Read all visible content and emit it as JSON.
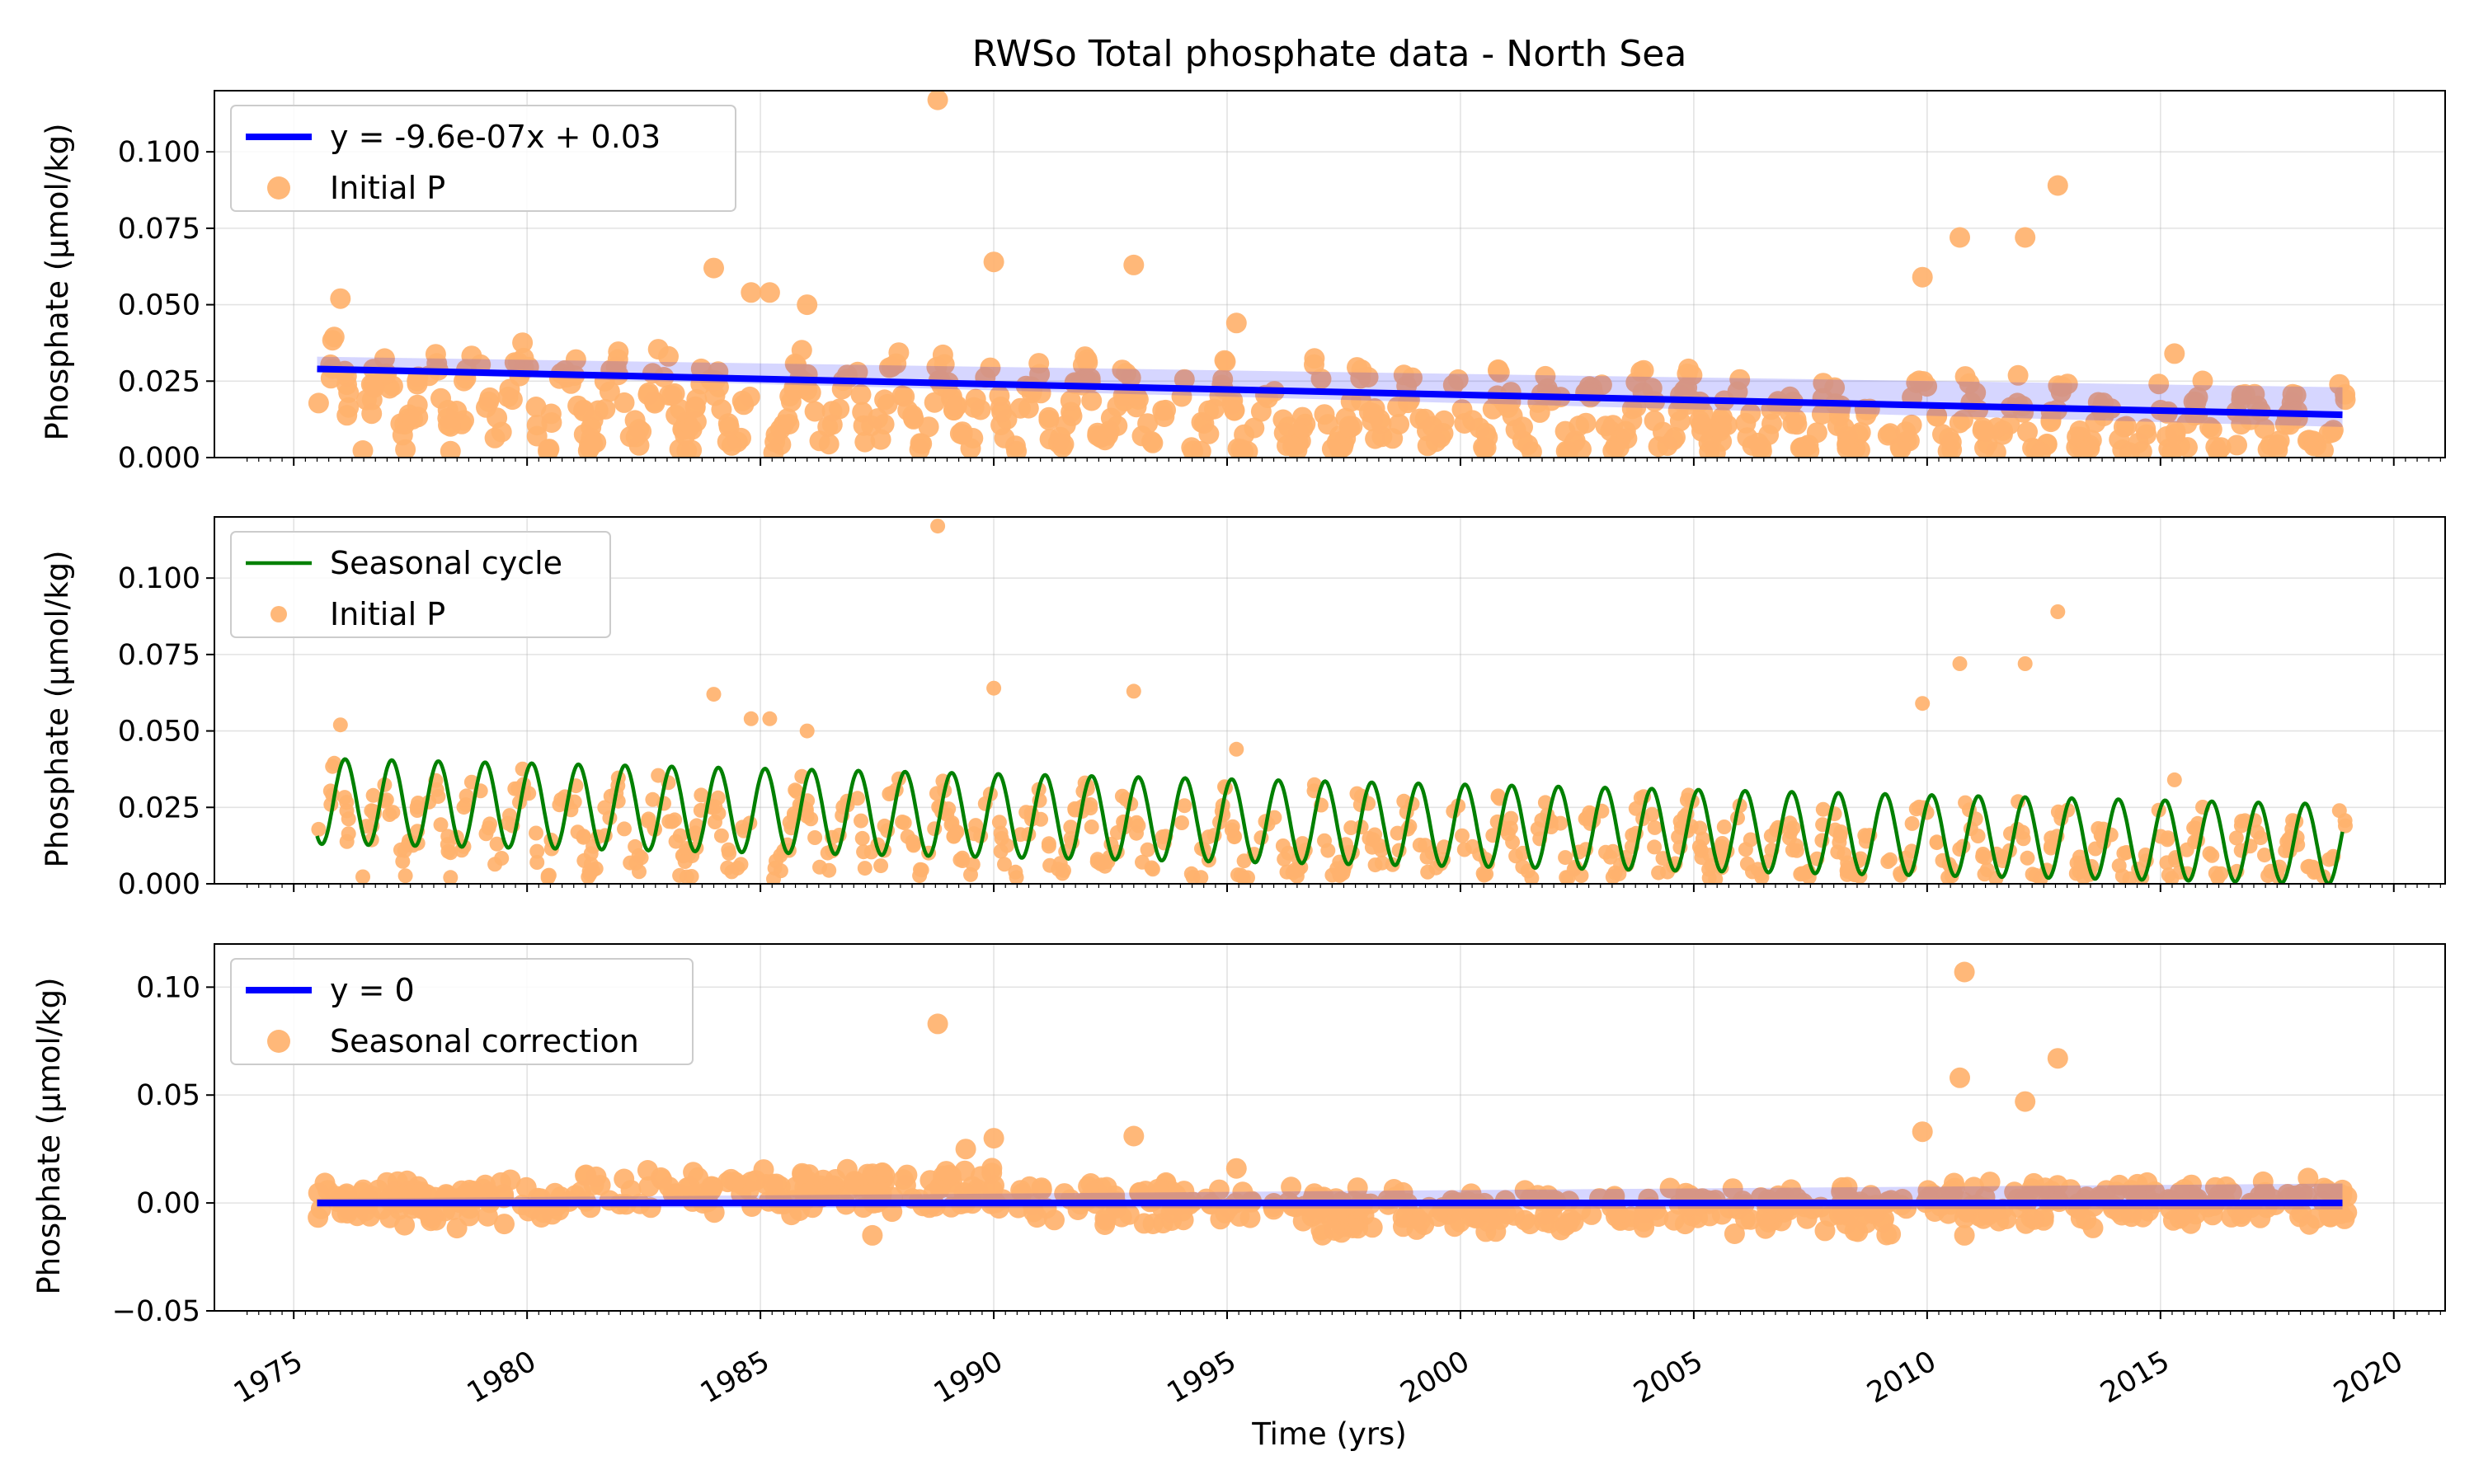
{
  "chart_data": [
    {
      "type": "scatter",
      "title": "RWSo Total phosphate data - North Sea",
      "ylabel": "Phosphate (µmol/kg)",
      "xlim": [
        1973.3,
        2021.1
      ],
      "ylim": [
        0,
        0.12
      ],
      "yticks": [
        0,
        0.025,
        0.05,
        0.075,
        0.1
      ],
      "ytick_labels": [
        "0.000",
        "0.025",
        "0.050",
        "0.075",
        "0.100"
      ],
      "grid": true,
      "legend_position": "top-left",
      "series": [
        {
          "name": "y = -9.6e-07x + 0.03",
          "kind": "line",
          "color": "#0000ff",
          "x": [
            1975.5,
            2018.9
          ],
          "y": [
            0.029,
            0.014
          ]
        },
        {
          "name": "Initial P",
          "kind": "scatter",
          "color": "#ffb26e",
          "seed": 7,
          "x_range": [
            1975.5,
            2019.0
          ],
          "trend": [
            0.032,
            0.015
          ],
          "amplitude": [
            0.013,
            0.009
          ],
          "outliers": [
            {
              "x": 1976.0,
              "y": 0.052
            },
            {
              "x": 1984.0,
              "y": 0.062
            },
            {
              "x": 1984.8,
              "y": 0.054
            },
            {
              "x": 1985.2,
              "y": 0.054
            },
            {
              "x": 1986.0,
              "y": 0.05
            },
            {
              "x": 1988.8,
              "y": 0.117
            },
            {
              "x": 1990.0,
              "y": 0.064
            },
            {
              "x": 1993.0,
              "y": 0.063
            },
            {
              "x": 1995.2,
              "y": 0.044
            },
            {
              "x": 2009.9,
              "y": 0.059
            },
            {
              "x": 2010.7,
              "y": 0.072
            },
            {
              "x": 2012.1,
              "y": 0.072
            },
            {
              "x": 2012.8,
              "y": 0.089
            },
            {
              "x": 2015.3,
              "y": 0.034
            }
          ]
        }
      ]
    },
    {
      "type": "scatter",
      "ylabel": "Phosphate (µmol/kg)",
      "xlim": [
        1973.3,
        2021.1
      ],
      "ylim": [
        0,
        0.12
      ],
      "yticks": [
        0,
        0.025,
        0.05,
        0.075,
        0.1
      ],
      "ytick_labels": [
        "0.000",
        "0.025",
        "0.050",
        "0.075",
        "0.100"
      ],
      "grid": true,
      "legend_position": "top-left",
      "series": [
        {
          "name": "Seasonal cycle",
          "kind": "seasonal",
          "color": "#008000",
          "x_range": [
            1975.5,
            2018.9
          ],
          "mean": [
            0.027,
            0.013
          ],
          "amplitude": [
            0.014,
            0.013
          ]
        },
        {
          "name": "Initial P",
          "kind": "scatter",
          "color": "#ffb26e",
          "same_as": "Initial P"
        }
      ]
    },
    {
      "type": "scatter",
      "xlabel": "Time (yrs)",
      "ylabel": "Phosphate (µmol/kg)",
      "xlim": [
        1973.3,
        2021.1
      ],
      "ylim": [
        -0.05,
        0.12
      ],
      "yticks": [
        -0.05,
        0,
        0.05,
        0.1
      ],
      "ytick_labels": [
        "−0.05",
        "0.00",
        "0.05",
        "0.10"
      ],
      "xticks": [
        1975,
        1980,
        1985,
        1990,
        1995,
        2000,
        2005,
        2010,
        2015,
        2020
      ],
      "xtick_labels": [
        "1975",
        "1980",
        "1985",
        "1990",
        "1995",
        "2000",
        "2005",
        "2010",
        "2015",
        "2020"
      ],
      "grid": true,
      "legend_position": "top-left",
      "series": [
        {
          "name": "y = 0",
          "kind": "line",
          "color": "#0000ff",
          "x": [
            1975.5,
            2018.9
          ],
          "y": [
            0,
            0
          ]
        },
        {
          "name": "Seasonal correction",
          "kind": "scatter",
          "color": "#ffb26e",
          "seed": 11,
          "x_range": [
            1975.5,
            2019.0
          ],
          "outliers": [
            {
              "x": 1988.8,
              "y": 0.083
            },
            {
              "x": 1989.4,
              "y": 0.025
            },
            {
              "x": 1990.0,
              "y": 0.03
            },
            {
              "x": 1993.0,
              "y": 0.031
            },
            {
              "x": 1995.2,
              "y": 0.016
            },
            {
              "x": 2009.9,
              "y": 0.033
            },
            {
              "x": 2010.7,
              "y": 0.058
            },
            {
              "x": 2010.8,
              "y": 0.107
            },
            {
              "x": 2012.1,
              "y": 0.047
            },
            {
              "x": 2012.8,
              "y": 0.067
            },
            {
              "x": 1987.4,
              "y": -0.015
            },
            {
              "x": 2010.8,
              "y": -0.015
            }
          ]
        }
      ]
    }
  ]
}
